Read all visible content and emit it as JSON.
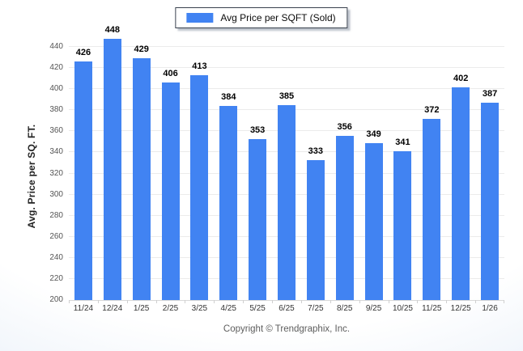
{
  "legend": {
    "label": "Avg Price per SQFT (Sold)"
  },
  "chart_data": {
    "type": "bar",
    "categories": [
      "11/24",
      "12/24",
      "1/25",
      "2/25",
      "3/25",
      "4/25",
      "5/25",
      "6/25",
      "7/25",
      "8/25",
      "9/25",
      "10/25",
      "11/25",
      "12/25",
      "1/26"
    ],
    "values": [
      426,
      448,
      429,
      406,
      413,
      384,
      353,
      385,
      333,
      356,
      349,
      341,
      372,
      402,
      387
    ],
    "series_name": "Avg Price per SQFT (Sold)",
    "title": "",
    "xlabel": "",
    "ylabel": "Avg. Price per SQ. FT.",
    "ylim": [
      200,
      450
    ],
    "ytick_start": 200,
    "ytick_end": 440,
    "ytick_step": 20,
    "grid": "horizontal",
    "legend_position": "top-center",
    "bar_color": "#4183F2"
  },
  "colors": {
    "bar": "#4183F2",
    "gridline": "#ebebeb",
    "axis_line": "#d9d9d9",
    "background_edge": "#dfe9f6"
  },
  "footer": {
    "copyright": "Copyright © Trendgraphix, Inc."
  }
}
